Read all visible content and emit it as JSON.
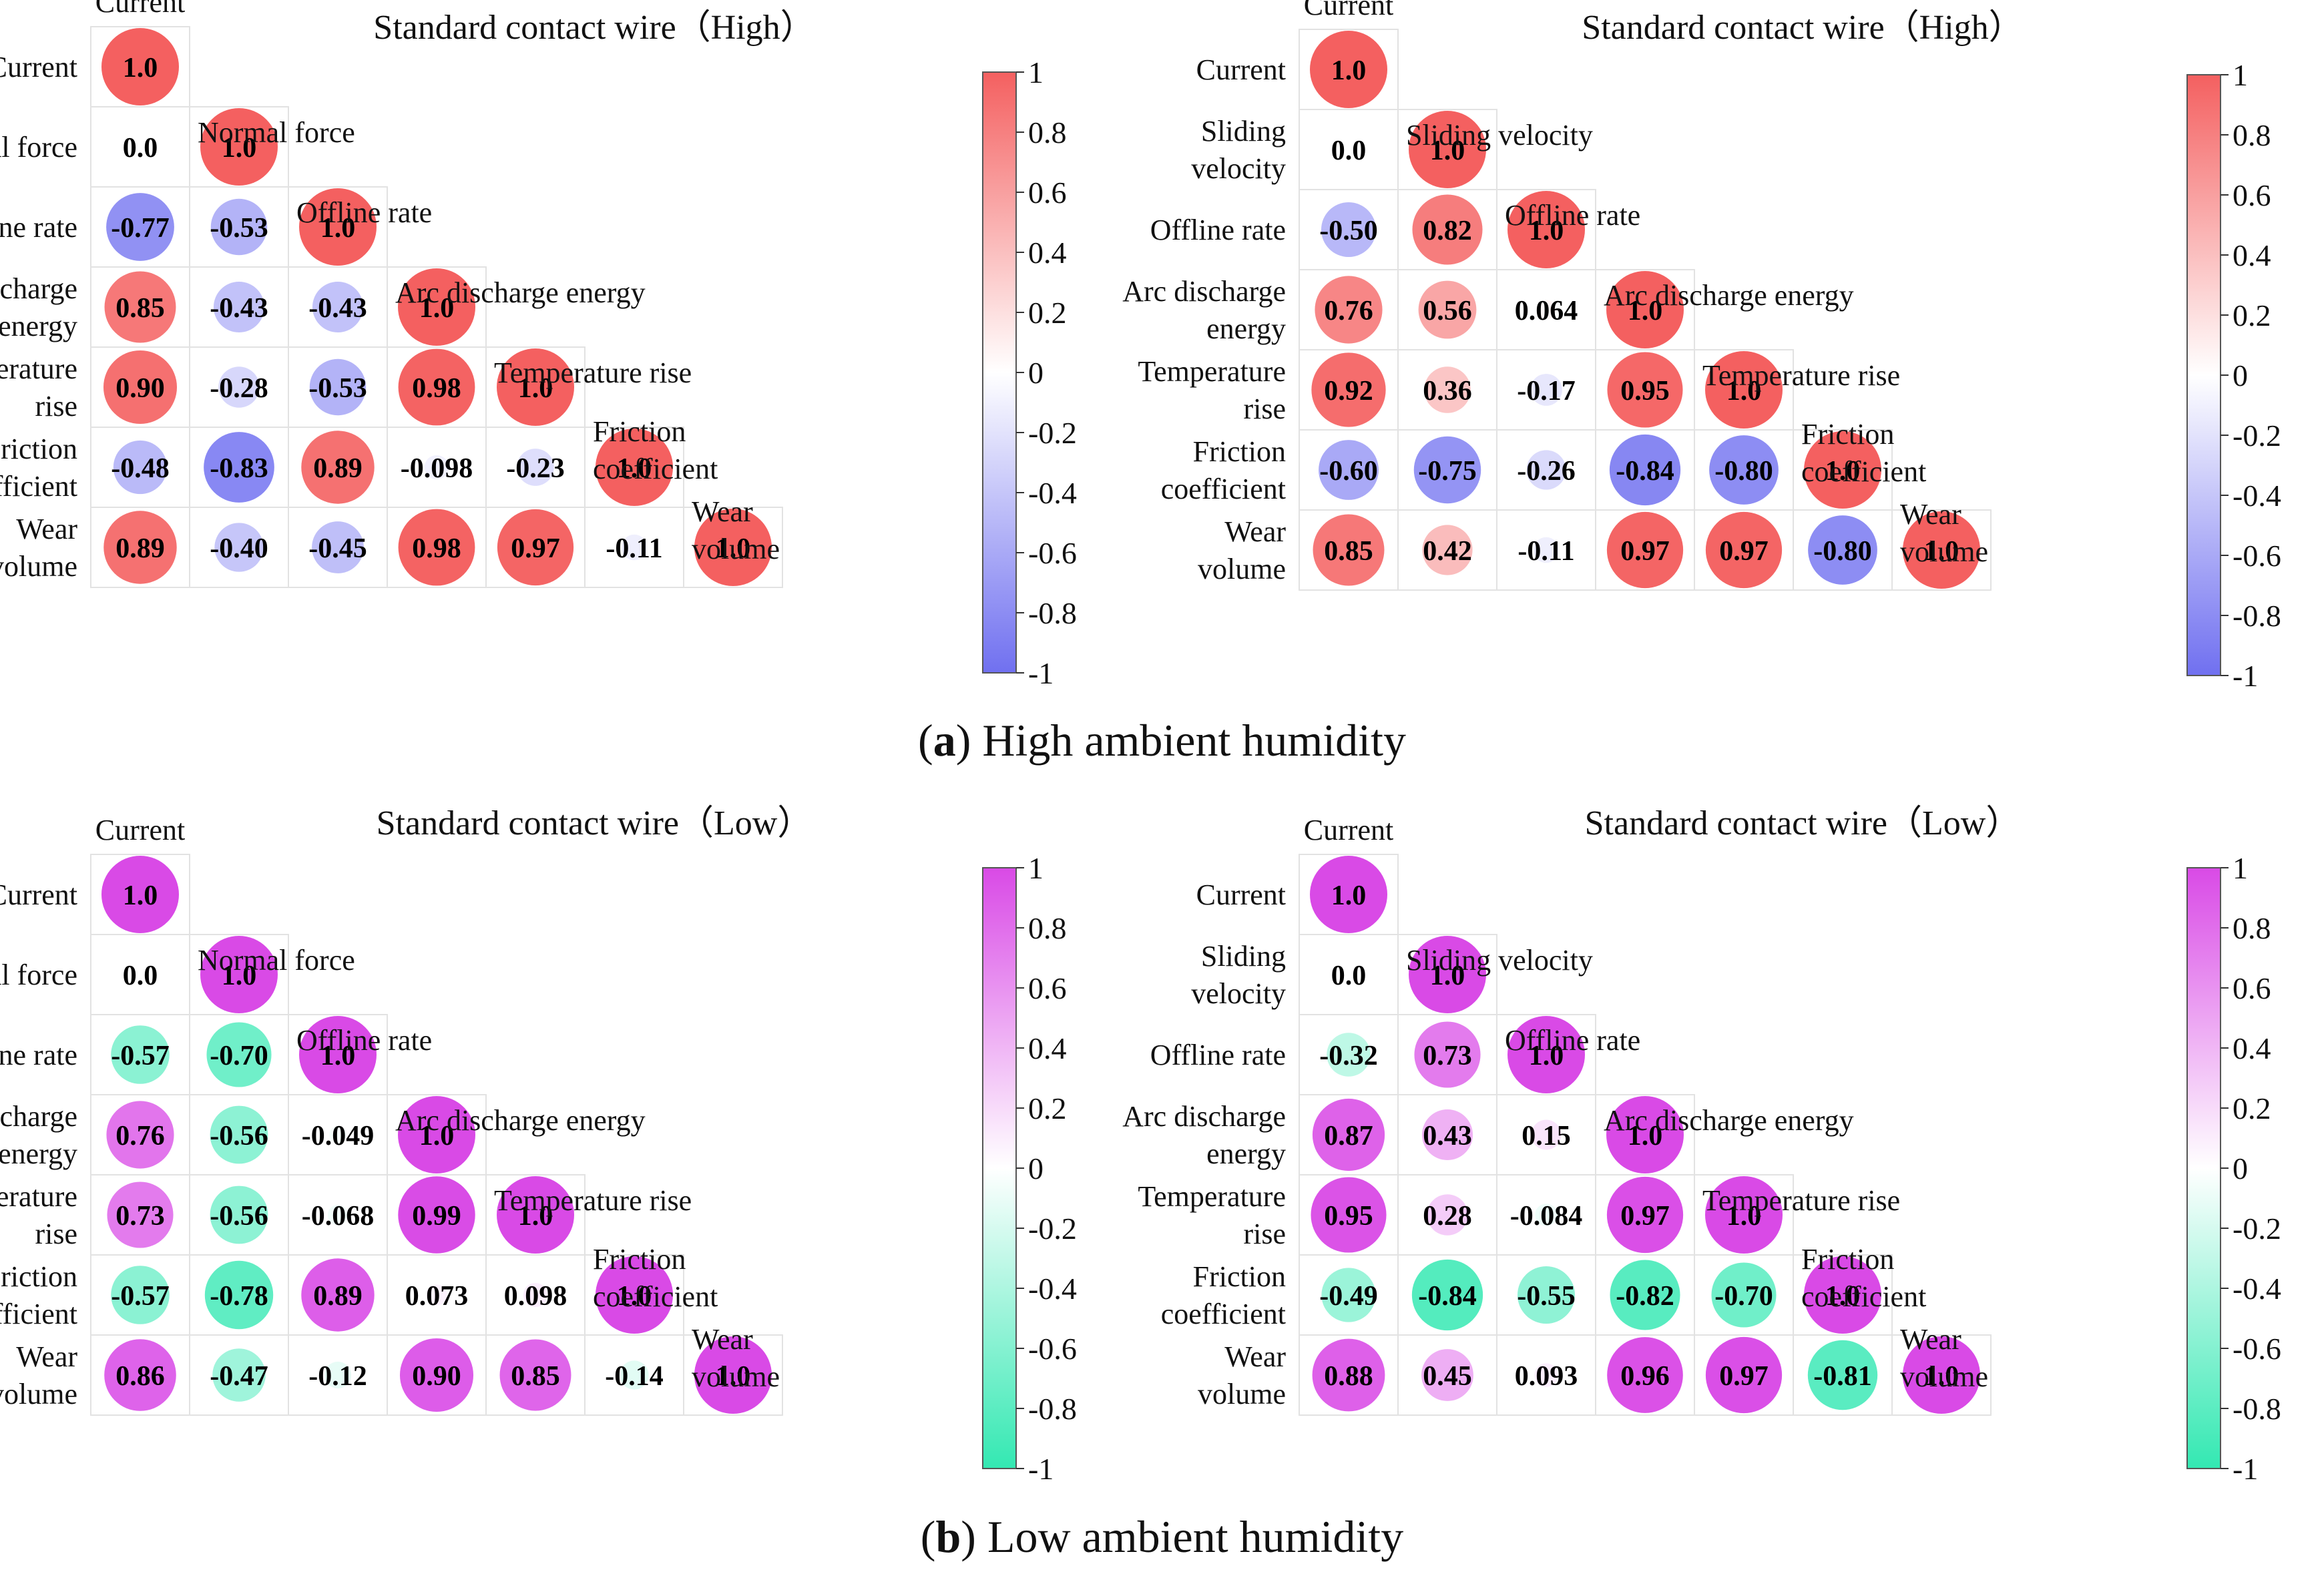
{
  "figure": {
    "captions": [
      {
        "open": "(",
        "letter": "a",
        "close": ")",
        "text": " High ambient humidity"
      },
      {
        "open": "(",
        "letter": "b",
        "close": ")",
        "text": " Low ambient humidity"
      }
    ]
  },
  "chart_data": [
    {
      "type": "heatmap",
      "id": "a-left",
      "title": "Standard contact wire（High）",
      "corner_label": "Current",
      "variables": [
        "Current",
        "Normal force",
        "Offline rate",
        "Arc discharge energy",
        "Temperature rise",
        "Friction coefficient",
        "Wear volume"
      ],
      "row_labels": [
        [
          "Current"
        ],
        [
          "Normal force"
        ],
        [
          "Offline rate"
        ],
        [
          "Arc discharge",
          "energy"
        ],
        [
          "Temperature",
          "rise"
        ],
        [
          "Friction",
          "coefficient"
        ],
        [
          "Wear",
          "volume"
        ]
      ],
      "diag_labels": [
        [
          "Normal force"
        ],
        [
          "Offline rate"
        ],
        [
          "Arc discharge energy"
        ],
        [
          "Temperature rise"
        ],
        [
          "Friction",
          "coefficient"
        ],
        [
          "Wear",
          "volume"
        ]
      ],
      "values": [
        [
          "1.0"
        ],
        [
          "0.0",
          "1.0"
        ],
        [
          "-0.77",
          "-0.53",
          "1.0"
        ],
        [
          "0.85",
          "-0.43",
          "-0.43",
          "1.0"
        ],
        [
          "0.90",
          "-0.28",
          "-0.53",
          "0.98",
          "1.0"
        ],
        [
          "-0.48",
          "-0.83",
          "0.89",
          "-0.098",
          "-0.23",
          "1.0"
        ],
        [
          "0.89",
          "-0.40",
          "-0.45",
          "0.98",
          "0.97",
          "-0.11",
          "1.0"
        ]
      ],
      "colorscale": {
        "negative": "#7070f0",
        "zero": "#ffffff",
        "positive": "#f46060",
        "range": [
          -1,
          1
        ]
      },
      "colorbar_ticks": [
        "1",
        "0.8",
        "0.6",
        "0.4",
        "0.2",
        "0",
        "-0.2",
        "-0.4",
        "-0.6",
        "-0.8",
        "-1"
      ]
    },
    {
      "type": "heatmap",
      "id": "a-right",
      "title": "Standard contact wire（High）",
      "corner_label": "Current",
      "variables": [
        "Current",
        "Sliding velocity",
        "Offline rate",
        "Arc discharge energy",
        "Temperature rise",
        "Friction coefficient",
        "Wear volume"
      ],
      "row_labels": [
        [
          "Current"
        ],
        [
          "Sliding",
          "velocity"
        ],
        [
          "Offline rate"
        ],
        [
          "Arc discharge",
          "energy"
        ],
        [
          "Temperature",
          "rise"
        ],
        [
          "Friction",
          "coefficient"
        ],
        [
          "Wear",
          "volume"
        ]
      ],
      "diag_labels": [
        [
          "Sliding velocity"
        ],
        [
          "Offline rate"
        ],
        [
          "Arc discharge energy"
        ],
        [
          "Temperature rise"
        ],
        [
          "Friction",
          "coefficient"
        ],
        [
          "Wear",
          "volume"
        ]
      ],
      "values": [
        [
          "1.0"
        ],
        [
          "0.0",
          "1.0"
        ],
        [
          "-0.50",
          "0.82",
          "1.0"
        ],
        [
          "0.76",
          "0.56",
          "0.064",
          "1.0"
        ],
        [
          "0.92",
          "0.36",
          "-0.17",
          "0.95",
          "1.0"
        ],
        [
          "-0.60",
          "-0.75",
          "-0.26",
          "-0.84",
          "-0.80",
          "1.0"
        ],
        [
          "0.85",
          "0.42",
          "-0.11",
          "0.97",
          "0.97",
          "-0.80",
          "1.0"
        ]
      ],
      "colorscale": {
        "negative": "#7070f0",
        "zero": "#ffffff",
        "positive": "#f46060",
        "range": [
          -1,
          1
        ]
      },
      "colorbar_ticks": [
        "1",
        "0.8",
        "0.6",
        "0.4",
        "0.2",
        "0",
        "-0.2",
        "-0.4",
        "-0.6",
        "-0.8",
        "-1"
      ]
    },
    {
      "type": "heatmap",
      "id": "b-left",
      "title": "Standard contact wire（Low）",
      "corner_label": "Current",
      "variables": [
        "Current",
        "Normal force",
        "Offline rate",
        "Arc discharge energy",
        "Temperature rise",
        "Friction coefficient",
        "Wear volume"
      ],
      "row_labels": [
        [
          "Current"
        ],
        [
          "Normal force"
        ],
        [
          "Offline rate"
        ],
        [
          "Arc discharge",
          "energy"
        ],
        [
          "Temperature",
          "rise"
        ],
        [
          "Friction",
          "coefficient"
        ],
        [
          "Wear",
          "volume"
        ]
      ],
      "diag_labels": [
        [
          "Normal force"
        ],
        [
          "Offline rate"
        ],
        [
          "Arc discharge energy"
        ],
        [
          "Temperature rise"
        ],
        [
          "Friction",
          "coefficient"
        ],
        [
          "Wear",
          "volume"
        ]
      ],
      "values": [
        [
          "1.0"
        ],
        [
          "0.0",
          "1.0"
        ],
        [
          "-0.57",
          "-0.70",
          "1.0"
        ],
        [
          "0.76",
          "-0.56",
          "-0.049",
          "1.0"
        ],
        [
          "0.73",
          "-0.56",
          "-0.068",
          "0.99",
          "1.0"
        ],
        [
          "-0.57",
          "-0.78",
          "0.89",
          "0.073",
          "0.098",
          "1.0"
        ],
        [
          "0.86",
          "-0.47",
          "-0.12",
          "0.90",
          "0.85",
          "-0.14",
          "1.0"
        ]
      ],
      "colorscale": {
        "negative": "#33e8b2",
        "zero": "#ffffff",
        "positive": "#d94ae6",
        "range": [
          -1,
          1
        ]
      },
      "colorbar_ticks": [
        "1",
        "0.8",
        "0.6",
        "0.4",
        "0.2",
        "0",
        "-0.2",
        "-0.4",
        "-0.6",
        "-0.8",
        "-1"
      ]
    },
    {
      "type": "heatmap",
      "id": "b-right",
      "title": "Standard contact wire（Low）",
      "corner_label": "Current",
      "variables": [
        "Current",
        "Sliding velocity",
        "Offline rate",
        "Arc discharge energy",
        "Temperature rise",
        "Friction coefficient",
        "Wear volume"
      ],
      "row_labels": [
        [
          "Current"
        ],
        [
          "Sliding",
          "velocity"
        ],
        [
          "Offline rate"
        ],
        [
          "Arc discharge",
          "energy"
        ],
        [
          "Temperature",
          "rise"
        ],
        [
          "Friction",
          "coefficient"
        ],
        [
          "Wear",
          "volume"
        ]
      ],
      "diag_labels": [
        [
          "Sliding velocity"
        ],
        [
          "Offline rate"
        ],
        [
          "Arc discharge energy"
        ],
        [
          "Temperature rise"
        ],
        [
          "Friction",
          "coefficient"
        ],
        [
          "Wear",
          "volume"
        ]
      ],
      "values": [
        [
          "1.0"
        ],
        [
          "0.0",
          "1.0"
        ],
        [
          "-0.32",
          "0.73",
          "1.0"
        ],
        [
          "0.87",
          "0.43",
          "0.15",
          "1.0"
        ],
        [
          "0.95",
          "0.28",
          "-0.084",
          "0.97",
          "1.0"
        ],
        [
          "-0.49",
          "-0.84",
          "-0.55",
          "-0.82",
          "-0.70",
          "1.0"
        ],
        [
          "0.88",
          "0.45",
          "0.093",
          "0.96",
          "0.97",
          "-0.81",
          "1.0"
        ]
      ],
      "colorscale": {
        "negative": "#33e8b2",
        "zero": "#ffffff",
        "positive": "#d94ae6",
        "range": [
          -1,
          1
        ]
      },
      "colorbar_ticks": [
        "1",
        "0.8",
        "0.6",
        "0.4",
        "0.2",
        "0",
        "-0.2",
        "-0.4",
        "-0.6",
        "-0.8",
        "-1"
      ]
    }
  ]
}
